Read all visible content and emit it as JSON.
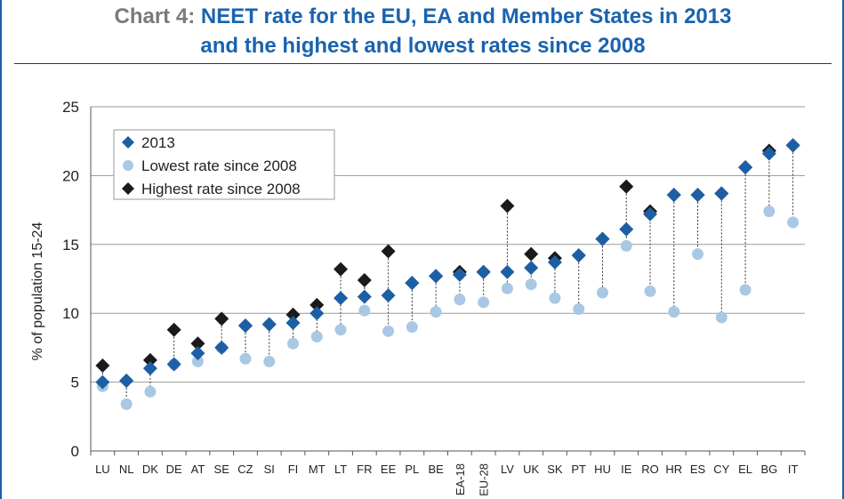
{
  "title": {
    "prefix": "Chart 4",
    "separator": ": ",
    "line1": "NEET rate for the EU, EA and Member States in 2013",
    "line2": "and the highest and lowest rates since 2008"
  },
  "colors": {
    "series_2013": "#1c5fa5",
    "series_lowest": "#a9c8e4",
    "series_highest": "#1a1a1a",
    "title_prefix": "#7a7a7a",
    "title_main": "#1a63ae",
    "frame": "#1f5fa8"
  },
  "chart_data": {
    "type": "scatter",
    "title": "NEET rate for the EU, EA and Member States in 2013 and the highest and lowest rates since 2008",
    "xlabel": "",
    "ylabel": "% of population 15-24",
    "ylim": [
      0,
      25
    ],
    "yticks": [
      0,
      5,
      10,
      15,
      20,
      25
    ],
    "grid": true,
    "legend": "top-left",
    "categories": [
      "LU",
      "NL",
      "DK",
      "DE",
      "AT",
      "SE",
      "CZ",
      "SI",
      "FI",
      "MT",
      "LT",
      "FR",
      "EE",
      "PL",
      "BE",
      "EA-18",
      "EU-28",
      "LV",
      "UK",
      "SK",
      "PT",
      "HU",
      "IE",
      "RO",
      "HR",
      "ES",
      "CY",
      "EL",
      "BG",
      "IT"
    ],
    "rotated_categories": [
      "EA-18",
      "EU-28"
    ],
    "series": [
      {
        "name": "2013",
        "marker": "diamond",
        "values": [
          5.0,
          5.1,
          6.0,
          6.3,
          7.1,
          7.5,
          9.1,
          9.2,
          9.3,
          10.0,
          11.1,
          11.2,
          11.3,
          12.2,
          12.7,
          12.8,
          13.0,
          13.0,
          13.3,
          13.7,
          14.2,
          15.4,
          16.1,
          17.2,
          18.6,
          18.6,
          18.7,
          20.6,
          21.6,
          22.2
        ]
      },
      {
        "name": "Lowest rate since 2008",
        "marker": "circle",
        "values": [
          4.7,
          3.4,
          4.3,
          6.3,
          6.5,
          7.5,
          6.7,
          6.5,
          7.8,
          8.3,
          8.8,
          10.2,
          8.7,
          9.0,
          10.1,
          11.0,
          10.8,
          11.8,
          12.1,
          11.1,
          10.3,
          11.5,
          14.9,
          11.6,
          10.1,
          14.3,
          9.7,
          11.7,
          17.4,
          16.6
        ]
      },
      {
        "name": "Highest rate since 2008",
        "marker": "diamond",
        "values": [
          6.2,
          5.1,
          6.6,
          8.8,
          7.8,
          9.6,
          9.1,
          9.2,
          9.9,
          10.6,
          13.2,
          12.4,
          14.5,
          12.2,
          12.7,
          13.0,
          13.0,
          17.8,
          14.3,
          14.0,
          14.2,
          15.4,
          19.2,
          17.4,
          18.6,
          18.6,
          18.7,
          20.6,
          21.8,
          22.2
        ]
      }
    ]
  }
}
